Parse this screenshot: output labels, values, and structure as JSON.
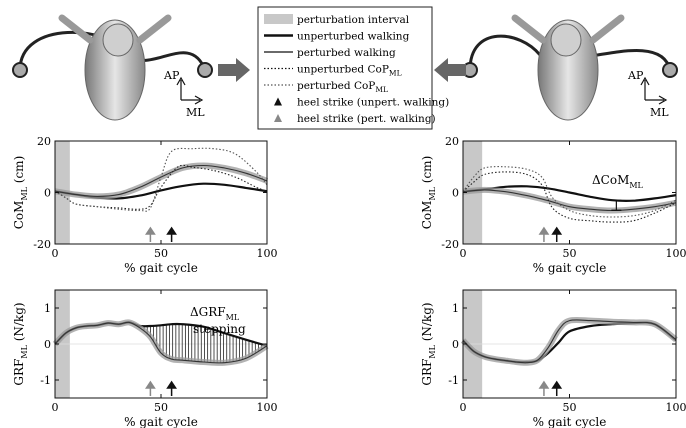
{
  "legend": {
    "items": [
      {
        "label": "perturbation interval",
        "kind": "patch"
      },
      {
        "label": "unperturbed walking",
        "kind": "thick-solid"
      },
      {
        "label": "perturbed walking",
        "kind": "solid"
      },
      {
        "label": "unperturbed CoP",
        "sub": "ML",
        "kind": "dotted-dark"
      },
      {
        "label": "perturbed CoP",
        "sub": "ML",
        "kind": "dotted-grey"
      },
      {
        "label": "heel strike (unpert. walking)",
        "kind": "tri-black"
      },
      {
        "label": "heel strike (pert. walking)",
        "kind": "tri-grey"
      }
    ]
  },
  "figures": {
    "left": {
      "ap": "AP",
      "ml": "ML",
      "arrow_direction": "right"
    },
    "right": {
      "ap": "AP",
      "ml": "ML",
      "arrow_direction": "left"
    }
  },
  "annotations": {
    "dgrf": "ΔGRF",
    "dgrf_sub": "ML",
    "dgrf_line2": "stepping",
    "dcom": "ΔCoM",
    "dcom_sub": "ML"
  },
  "chart_data": [
    {
      "id": "com-left",
      "type": "line",
      "ylabel": "CoM",
      "ylabel_sub": "ML",
      "ylabel_unit": "(cm)",
      "xlabel": "% gait cycle",
      "xlim": [
        0,
        100
      ],
      "ylim": [
        -20,
        20
      ],
      "xticks": [
        "0",
        "50",
        "100"
      ],
      "yticks": [
        "20",
        "0",
        "-20"
      ],
      "perturbation_interval": [
        0,
        7
      ],
      "heel_strike_pert": 45,
      "heel_strike_unpert": 55,
      "series": [
        {
          "style": "thick-solid",
          "x": [
            0,
            10,
            20,
            30,
            40,
            50,
            60,
            70,
            80,
            90,
            100
          ],
          "y": [
            0.5,
            -0.8,
            -2,
            -2.3,
            -1.2,
            0.8,
            2.5,
            3.4,
            3,
            1.8,
            0.5
          ]
        },
        {
          "style": "perturbed",
          "x": [
            0,
            10,
            20,
            30,
            40,
            50,
            60,
            70,
            80,
            90,
            100
          ],
          "y": [
            0.5,
            -0.8,
            -1.5,
            -0.8,
            2,
            6,
            9.5,
            10.5,
            9.5,
            7.5,
            4.5
          ]
        },
        {
          "style": "dotted-dark",
          "x": [
            0,
            5,
            10,
            20,
            30,
            40,
            45,
            50,
            58,
            65,
            75,
            85,
            95,
            100
          ],
          "y": [
            0.5,
            -2,
            -4.5,
            -5.5,
            -6,
            -6.5,
            -5,
            2,
            10,
            9.8,
            8.5,
            6,
            2,
            0.5
          ]
        },
        {
          "style": "dotted-grey",
          "x": [
            0,
            5,
            10,
            20,
            30,
            40,
            45,
            50,
            55,
            65,
            75,
            85,
            95,
            100
          ],
          "y": [
            0.5,
            -2,
            -4.5,
            -5.5,
            -6.5,
            -7,
            -6,
            6,
            16,
            17,
            17,
            15,
            8,
            3
          ]
        }
      ]
    },
    {
      "id": "com-right",
      "type": "line",
      "ylabel": "CoM",
      "ylabel_sub": "ML",
      "ylabel_unit": "(cm)",
      "xlabel": "% gait cycle",
      "xlim": [
        0,
        100
      ],
      "ylim": [
        -20,
        20
      ],
      "xticks": [
        "0",
        "50",
        "100"
      ],
      "yticks": [
        "20",
        "0",
        "-20"
      ],
      "perturbation_interval": [
        0,
        9
      ],
      "heel_strike_pert": 38,
      "heel_strike_unpert": 44,
      "series": [
        {
          "style": "thick-solid",
          "x": [
            0,
            10,
            20,
            30,
            40,
            50,
            60,
            70,
            80,
            90,
            100
          ],
          "y": [
            0.3,
            1.2,
            2.2,
            2.4,
            1.6,
            0,
            -1.7,
            -3,
            -3.2,
            -2.3,
            -1
          ]
        },
        {
          "style": "perturbed",
          "x": [
            0,
            10,
            20,
            30,
            40,
            50,
            60,
            70,
            80,
            90,
            100
          ],
          "y": [
            0.3,
            1,
            0.3,
            -1.2,
            -3.2,
            -5.5,
            -6.5,
            -7,
            -6.5,
            -5.5,
            -4
          ]
        },
        {
          "style": "dotted-dark",
          "x": [
            0,
            5,
            10,
            20,
            30,
            37,
            42,
            50,
            60,
            70,
            80,
            90,
            100
          ],
          "y": [
            0.3,
            4,
            7,
            8,
            7,
            3,
            -6,
            -10,
            -11,
            -11.5,
            -11,
            -8,
            -4
          ]
        },
        {
          "style": "dotted-grey",
          "x": [
            0,
            5,
            10,
            20,
            30,
            37,
            42,
            50,
            60,
            70,
            80,
            90,
            100
          ],
          "y": [
            0.3,
            6,
            9.5,
            10,
            9,
            6,
            -2,
            -7,
            -9,
            -9.5,
            -9,
            -7,
            -3
          ]
        }
      ]
    },
    {
      "id": "grf-left",
      "type": "line",
      "ylabel": "GRF",
      "ylabel_sub": "ML",
      "ylabel_unit": "(N/kg)",
      "xlabel": "% gait cycle",
      "xlim": [
        0,
        100
      ],
      "ylim": [
        -1.5,
        1.5
      ],
      "xticks": [
        "0",
        "50",
        "100"
      ],
      "yticks": [
        "1",
        "0",
        "-1"
      ],
      "perturbation_interval": [
        0,
        7
      ],
      "heel_strike_pert": 45,
      "heel_strike_unpert": 55,
      "hatch_range": [
        42,
        100
      ],
      "series": [
        {
          "style": "thick-solid",
          "x": [
            0,
            5,
            10,
            15,
            20,
            25,
            30,
            35,
            40,
            45,
            50,
            55,
            60,
            70,
            80,
            90,
            100
          ],
          "y": [
            0,
            0.3,
            0.45,
            0.5,
            0.52,
            0.58,
            0.55,
            0.6,
            0.5,
            0.5,
            0.52,
            0.55,
            0.55,
            0.48,
            0.3,
            0.12,
            -0.05
          ]
        },
        {
          "style": "perturbed",
          "x": [
            0,
            5,
            10,
            15,
            20,
            25,
            30,
            35,
            40,
            45,
            50,
            55,
            60,
            70,
            80,
            90,
            100
          ],
          "y": [
            0,
            0.3,
            0.45,
            0.5,
            0.52,
            0.58,
            0.55,
            0.6,
            0.45,
            0.2,
            -0.25,
            -0.42,
            -0.45,
            -0.5,
            -0.52,
            -0.4,
            -0.05
          ]
        }
      ]
    },
    {
      "id": "grf-right",
      "type": "line",
      "ylabel": "GRF",
      "ylabel_sub": "ML",
      "ylabel_unit": "(N/kg)",
      "xlabel": "% gait cycle",
      "xlim": [
        0,
        100
      ],
      "ylim": [
        -1.5,
        1.5
      ],
      "xticks": [
        "0",
        "50",
        "100"
      ],
      "yticks": [
        "1",
        "0",
        "-1"
      ],
      "perturbation_interval": [
        0,
        9
      ],
      "heel_strike_pert": 38,
      "heel_strike_unpert": 44,
      "series": [
        {
          "style": "thick-solid",
          "x": [
            0,
            5,
            10,
            15,
            20,
            25,
            30,
            35,
            40,
            45,
            50,
            60,
            70,
            80,
            90,
            100
          ],
          "y": [
            0.1,
            -0.2,
            -0.35,
            -0.42,
            -0.46,
            -0.5,
            -0.5,
            -0.46,
            -0.25,
            0.05,
            0.35,
            0.5,
            0.55,
            0.58,
            0.55,
            0.1
          ]
        },
        {
          "style": "perturbed",
          "x": [
            0,
            5,
            10,
            15,
            20,
            25,
            30,
            35,
            40,
            45,
            50,
            60,
            70,
            80,
            90,
            100
          ],
          "y": [
            0.1,
            -0.2,
            -0.35,
            -0.42,
            -0.46,
            -0.5,
            -0.52,
            -0.45,
            -0.1,
            0.4,
            0.65,
            0.65,
            0.62,
            0.6,
            0.55,
            0.12
          ]
        }
      ]
    }
  ]
}
